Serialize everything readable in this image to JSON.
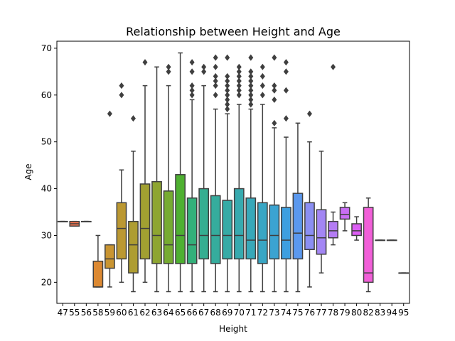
{
  "chart_data": {
    "type": "boxplot",
    "title": "Relationship between Height and Age",
    "xlabel": "Height",
    "ylabel": "Age",
    "ylim": [
      15.5,
      71.5
    ],
    "yticks": [
      20,
      30,
      40,
      50,
      60,
      70
    ],
    "grid": false,
    "legend": "none",
    "categories": [
      "47",
      "55",
      "56",
      "58",
      "59",
      "60",
      "61",
      "62",
      "63",
      "64",
      "65",
      "66",
      "67",
      "68",
      "69",
      "70",
      "71",
      "72",
      "73",
      "74",
      "75",
      "76",
      "77",
      "78",
      "79",
      "80",
      "82",
      "83",
      "94",
      "95"
    ],
    "boxes": [
      {
        "x": "47",
        "color": "#f77189",
        "min": 33,
        "q1": 33,
        "median": 33,
        "q3": 33,
        "max": 33,
        "fliers": []
      },
      {
        "x": "55",
        "color": "#f7754f",
        "min": 32,
        "q1": 32,
        "median": 32.5,
        "q3": 33,
        "max": 33,
        "fliers": []
      },
      {
        "x": "56",
        "color": "#e68a2f",
        "min": 33,
        "q1": 33,
        "median": 33,
        "q3": 33,
        "max": 33,
        "fliers": []
      },
      {
        "x": "58",
        "color": "#dc8932",
        "min": 19,
        "q1": 19,
        "median": 19,
        "q3": 24.5,
        "max": 30,
        "fliers": []
      },
      {
        "x": "59",
        "color": "#c99532",
        "min": 19,
        "q1": 23,
        "median": 25,
        "q3": 28,
        "max": 28,
        "fliers": [
          56
        ]
      },
      {
        "x": "60",
        "color": "#bb9832",
        "min": 20,
        "q1": 25,
        "median": 31.5,
        "q3": 37,
        "max": 44,
        "fliers": [
          60,
          62
        ]
      },
      {
        "x": "61",
        "color": "#ae9d31",
        "min": 18,
        "q1": 22,
        "median": 28,
        "q3": 33,
        "max": 48,
        "fliers": [
          55
        ]
      },
      {
        "x": "62",
        "color": "#a1a031",
        "min": 20,
        "q1": 25,
        "median": 31.5,
        "q3": 41,
        "max": 62,
        "fliers": [
          67
        ]
      },
      {
        "x": "63",
        "color": "#8ea531",
        "min": 18,
        "q1": 24,
        "median": 30,
        "q3": 41.5,
        "max": 66,
        "fliers": []
      },
      {
        "x": "64",
        "color": "#77ab31",
        "min": 18,
        "q1": 24,
        "median": 28,
        "q3": 39.5,
        "max": 62,
        "fliers": [
          65,
          66
        ]
      },
      {
        "x": "65",
        "color": "#4eb031",
        "min": 18,
        "q1": 24,
        "median": 30,
        "q3": 43,
        "max": 69,
        "fliers": []
      },
      {
        "x": "66",
        "color": "#33b07a",
        "min": 18,
        "q1": 24,
        "median": 28,
        "q3": 38,
        "max": 59,
        "fliers": [
          60,
          61,
          62,
          65,
          67
        ]
      },
      {
        "x": "67",
        "color": "#34ae91",
        "min": 18,
        "q1": 25,
        "median": 30,
        "q3": 40,
        "max": 62,
        "fliers": [
          65,
          66
        ]
      },
      {
        "x": "68",
        "color": "#35ac9d",
        "min": 18,
        "q1": 24,
        "median": 30,
        "q3": 38.5,
        "max": 57,
        "fliers": [
          60,
          62,
          63,
          64,
          66,
          68
        ]
      },
      {
        "x": "69",
        "color": "#36aba6",
        "min": 18,
        "q1": 25,
        "median": 30,
        "q3": 37.5,
        "max": 56,
        "fliers": [
          57,
          58,
          59,
          60,
          61,
          62,
          63,
          64,
          68
        ]
      },
      {
        "x": "70",
        "color": "#37aaaf",
        "min": 18,
        "q1": 25,
        "median": 30,
        "q3": 40,
        "max": 58,
        "fliers": [
          60,
          61,
          62,
          63,
          64,
          65,
          66
        ]
      },
      {
        "x": "71",
        "color": "#38a8b9",
        "min": 18,
        "q1": 25,
        "median": 29,
        "q3": 38,
        "max": 57,
        "fliers": [
          58,
          59,
          60,
          61,
          62,
          63,
          64,
          65,
          68
        ]
      },
      {
        "x": "72",
        "color": "#39a6c4",
        "min": 18,
        "q1": 24,
        "median": 29,
        "q3": 37,
        "max": 58,
        "fliers": [
          60,
          62,
          64,
          66
        ]
      },
      {
        "x": "73",
        "color": "#3ba3d1",
        "min": 18,
        "q1": 25,
        "median": 30,
        "q3": 36.5,
        "max": 53,
        "fliers": [
          54,
          59,
          61,
          62,
          68
        ]
      },
      {
        "x": "74",
        "color": "#3d9fe0",
        "min": 18,
        "q1": 25,
        "median": 29,
        "q3": 36,
        "max": 51,
        "fliers": [
          55,
          61,
          65,
          67
        ]
      },
      {
        "x": "75",
        "color": "#5b98ee",
        "min": 18,
        "q1": 25,
        "median": 30.5,
        "q3": 39,
        "max": 54,
        "fliers": []
      },
      {
        "x": "76",
        "color": "#8b8ff3",
        "min": 19,
        "q1": 27,
        "median": 30,
        "q3": 37,
        "max": 50,
        "fliers": [
          56
        ]
      },
      {
        "x": "77",
        "color": "#a386f4",
        "min": 22,
        "q1": 26,
        "median": 29.5,
        "q3": 35.5,
        "max": 48,
        "fliers": []
      },
      {
        "x": "78",
        "color": "#b47cf4",
        "min": 28,
        "q1": 29.5,
        "median": 31,
        "q3": 33,
        "max": 35,
        "fliers": [
          66
        ]
      },
      {
        "x": "79",
        "color": "#c86ef4",
        "min": 31,
        "q1": 33.5,
        "median": 34.5,
        "q3": 36,
        "max": 37,
        "fliers": []
      },
      {
        "x": "80",
        "color": "#dc5ef4",
        "min": 29,
        "q1": 30,
        "median": 31,
        "q3": 32.5,
        "max": 34,
        "fliers": []
      },
      {
        "x": "82",
        "color": "#f15fd8",
        "min": 18,
        "q1": 20,
        "median": 22,
        "q3": 36,
        "max": 38,
        "fliers": []
      },
      {
        "x": "83",
        "color": "#f467c3",
        "min": 29,
        "q1": 29,
        "median": 29,
        "q3": 29,
        "max": 29,
        "fliers": []
      },
      {
        "x": "94",
        "color": "#f56bb2",
        "min": 29,
        "q1": 29,
        "median": 29,
        "q3": 29,
        "max": 29,
        "fliers": []
      },
      {
        "x": "95",
        "color": "#f66fa1",
        "min": 22,
        "q1": 22,
        "median": 22,
        "q3": 22,
        "max": 22,
        "fliers": []
      }
    ]
  }
}
